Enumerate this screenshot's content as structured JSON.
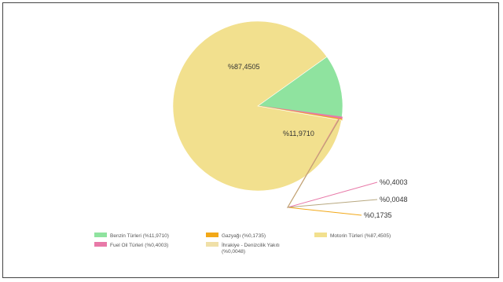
{
  "chart_data": {
    "type": "pie",
    "title": "",
    "slices": [
      {
        "name": "Benzin Türleri (%11,9710)",
        "value": 11.971,
        "label": "%11,9710",
        "color": "#8fe39f"
      },
      {
        "name": "Fuel Oil Türleri (%0,4003)",
        "value": 0.4003,
        "label": "%0,4003",
        "color": "#e879a8"
      },
      {
        "name": "Gazyağı (%0,1735)",
        "value": 0.1735,
        "label": "%0,1735",
        "color": "#f2a818"
      },
      {
        "name": "İhrakiye - Denizcilik Yakıtı (%0,0048)",
        "value": 0.0048,
        "label": "%0,0048",
        "color": "#f0e0a8"
      },
      {
        "name": "Motorin Türleri (%87,4505)",
        "value": 87.4505,
        "label": "%87,4505",
        "color": "#f2e08e"
      }
    ],
    "legend": "bottom"
  }
}
